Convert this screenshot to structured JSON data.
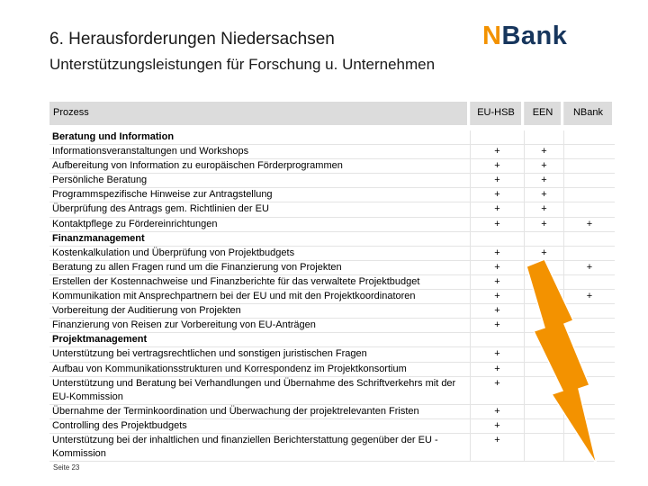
{
  "header": {
    "title": "6. Herausforderungen Niedersachsen",
    "subtitle": "Unterstützungsleistungen für Forschung u. Unternehmen",
    "logo": [
      "N",
      "Bank"
    ]
  },
  "table": {
    "columns": [
      "Prozess",
      "EU-HSB",
      "EEN",
      "NBank"
    ],
    "rows": [
      [
        "Beratung und Information",
        null,
        null,
        null
      ],
      [
        "Informationsveranstaltungen und Workshops",
        "+",
        "+",
        null
      ],
      [
        "Aufbereitung von Information zu europäischen Förderprogrammen",
        "+",
        "+",
        null
      ],
      [
        "Persönliche Beratung",
        "+",
        "+",
        null
      ],
      [
        "Programmspezifische Hinweise zur Antragstellung",
        "+",
        "+",
        null
      ],
      [
        "Überprüfung des Antrags gem. Richtlinien der EU",
        "+",
        "+",
        null
      ],
      [
        "Kontaktpflege zu Fördereinrichtungen",
        "+",
        "+",
        "+"
      ],
      [
        "Finanzmanagement",
        null,
        null,
        null
      ],
      [
        "Kostenkalkulation und Überprüfung von Projektbudgets",
        "+",
        "+",
        null
      ],
      [
        "Beratung zu allen Fragen rund um die Finanzierung von Projekten",
        "+",
        "+",
        "+"
      ],
      [
        "Erstellen der Kostennachweise und Finanzberichte für das verwaltete Projektbudget",
        "+",
        null,
        null
      ],
      [
        "Kommunikation mit Ansprechpartnern bei der EU und mit den Projektkoordinatoren",
        "+",
        null,
        "+"
      ],
      [
        "Vorbereitung der Auditierung von Projekten",
        "+",
        null,
        null
      ],
      [
        "Finanzierung von Reisen zur Vorbereitung von EU-Anträgen",
        "+",
        null,
        null
      ],
      [
        "Projektmanagement",
        null,
        null,
        null
      ],
      [
        "Unterstützung bei vertragsrechtlichen und sonstigen juristischen Fragen",
        "+",
        null,
        null
      ],
      [
        "Aufbau von Kommunikationsstrukturen und Korrespondenz im Projektkonsortium",
        "+",
        null,
        null
      ],
      [
        "Unterstützung und Beratung bei Verhandlungen und Übernahme des Schriftverkehrs mit der EU-Kommission",
        "+",
        null,
        null
      ],
      [
        "Übernahme der Terminkoordination und Überwachung der projektrelevanten Fristen",
        "+",
        null,
        null
      ],
      [
        "Controlling des Projektbudgets",
        "+",
        null,
        null
      ],
      [
        "Unterstützung bei der inhaltlichen und finanziellen Berichterstattung gegenüber der EU -Kommission",
        "+",
        null,
        null
      ]
    ],
    "sections": [
      0,
      7,
      14
    ]
  },
  "footer": {
    "page": "Seite 23"
  }
}
